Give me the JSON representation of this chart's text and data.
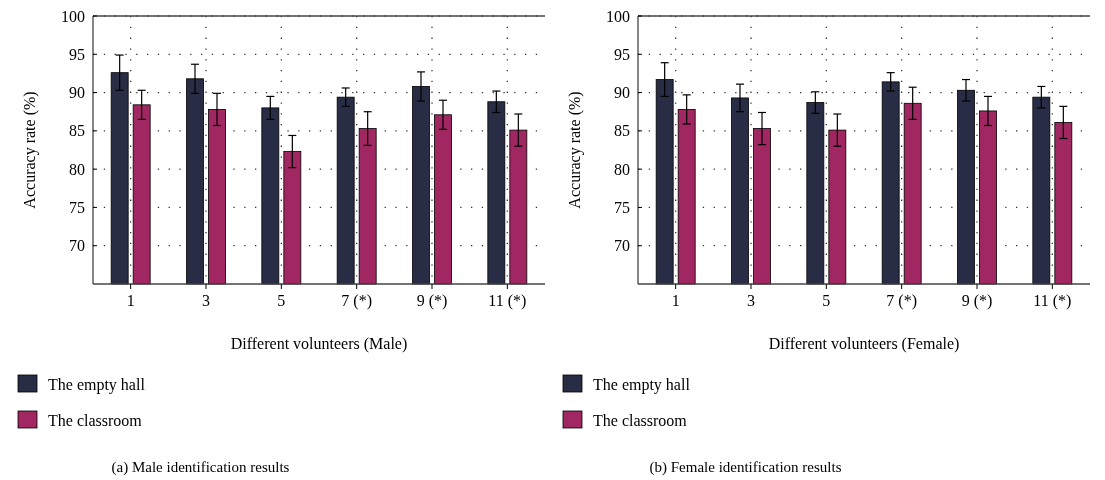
{
  "chart_data": [
    {
      "type": "bar",
      "title": "(a) Male identification results",
      "xlabel": "Different volunteers (Male)",
      "ylabel": "Accuracy rate (%)",
      "categories": [
        "1",
        "3",
        "5",
        "7 (*)",
        "9 (*)",
        "11 (*)"
      ],
      "series": [
        {
          "name": "The empty hall",
          "color": "#282d45",
          "values": [
            92.6,
            91.8,
            88.0,
            89.4,
            90.8,
            88.8
          ],
          "errors": [
            2.3,
            1.9,
            1.5,
            1.2,
            1.9,
            1.4
          ]
        },
        {
          "name": "The classroom",
          "color": "#a02762",
          "values": [
            88.4,
            87.8,
            82.3,
            85.3,
            87.1,
            85.1
          ],
          "errors": [
            1.9,
            2.1,
            2.1,
            2.2,
            1.9,
            2.1
          ]
        }
      ],
      "ylim": [
        65,
        100
      ],
      "yticks": [
        70,
        75,
        80,
        85,
        90,
        95,
        100
      ],
      "grid": true,
      "legend": "bottom left"
    },
    {
      "type": "bar",
      "title": "(b) Female identification results",
      "xlabel": "Different volunteers (Female)",
      "ylabel": "Accuracy rate (%)",
      "categories": [
        "1",
        "3",
        "5",
        "7 (*)",
        "9 (*)",
        "11 (*)"
      ],
      "series": [
        {
          "name": "The empty hall",
          "color": "#282d45",
          "values": [
            91.7,
            89.3,
            88.7,
            91.4,
            90.3,
            89.4
          ],
          "errors": [
            2.2,
            1.8,
            1.4,
            1.2,
            1.4,
            1.4
          ]
        },
        {
          "name": "The classroom",
          "color": "#a02762",
          "values": [
            87.8,
            85.3,
            85.1,
            88.6,
            87.6,
            86.1
          ],
          "errors": [
            1.9,
            2.1,
            2.1,
            2.1,
            1.9,
            2.1
          ]
        }
      ],
      "ylim": [
        65,
        100
      ],
      "yticks": [
        70,
        75,
        80,
        85,
        90,
        95,
        100
      ],
      "grid": true,
      "legend": "bottom left"
    }
  ]
}
